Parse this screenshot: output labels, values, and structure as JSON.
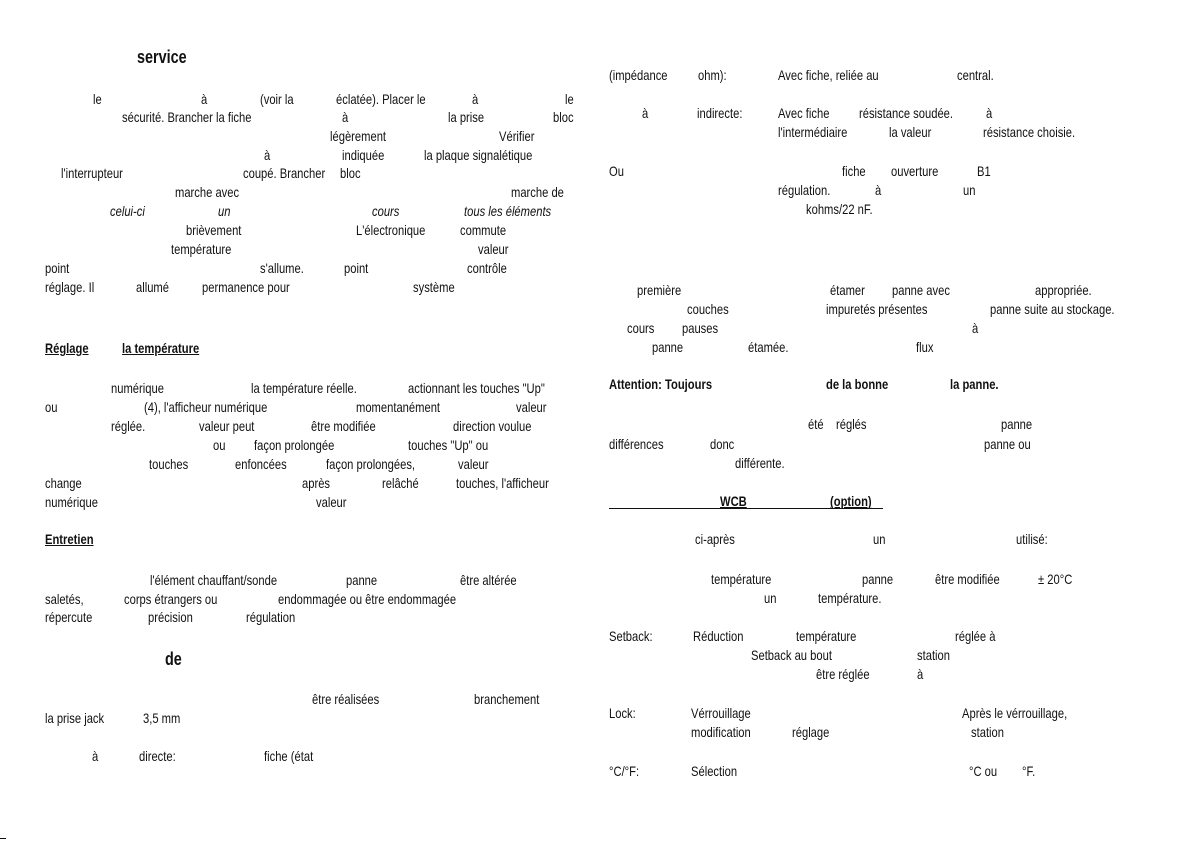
{
  "left_column": {
    "heading_service": "service",
    "l1": [
      "le",
      "à",
      "(voir la",
      "éclatée). Placer le",
      "à",
      "le"
    ],
    "l2": [
      "sécurité. Brancher la fiche",
      "à",
      "la prise",
      "bloc"
    ],
    "l3": [
      "légèrement",
      "Vérifier"
    ],
    "l4": [
      "à",
      "indiquée",
      "la plaque signalétique"
    ],
    "l5": [
      "l'interrupteur",
      "coupé. Brancher",
      "bloc"
    ],
    "l6": [
      "marche avec",
      "marche de"
    ],
    "l7": [
      "celui-ci",
      "un",
      "cours",
      "tous les éléments"
    ],
    "l8": [
      "brièvement",
      "L'électronique",
      "commute"
    ],
    "l9": [
      "température",
      "valeur"
    ],
    "l10": [
      "point",
      "s'allume.",
      "point",
      "contrôle"
    ],
    "l11": [
      "réglage. Il",
      "allumé",
      "permanence pour",
      "système"
    ],
    "heading_reglage": [
      "Réglage",
      "la température"
    ],
    "r1": [
      "numérique",
      "la température réelle.",
      "actionnant les touches \"Up\""
    ],
    "r2": [
      "ou",
      "(4), l'afficheur numérique",
      "momentanément",
      "valeur"
    ],
    "r3": [
      "réglée.",
      "valeur peut",
      "être modifiée",
      "direction voulue"
    ],
    "r4": [
      "ou",
      "façon prolongée",
      "touches \"Up\" ou"
    ],
    "r5": [
      "touches",
      "enfoncées",
      "façon prolongées,",
      "valeur"
    ],
    "r6": [
      "change",
      "après",
      "relâché",
      "touches, l'afficheur"
    ],
    "r7": [
      "numérique",
      "valeur"
    ],
    "heading_entretien": "Entretien",
    "e1": [
      "l'élément chauffant/sonde",
      "panne",
      "être altérée"
    ],
    "e2": [
      "saletés,",
      "corps étrangers ou",
      "endommagée ou être endommagée"
    ],
    "e3": [
      "répercute",
      "précision",
      "régulation"
    ],
    "heading_de": "de",
    "m1": [
      "être réalisées",
      "branchement"
    ],
    "m2": [
      "la prise jack",
      "3,5 mm"
    ],
    "m3": [
      "à",
      "directe:",
      "fiche (état"
    ]
  },
  "right_column": {
    "p1": [
      "(impédance",
      "ohm):",
      "Avec fiche, reliée au",
      "central."
    ],
    "p2": [
      "à",
      "indirecte:",
      "Avec fiche",
      "résistance soudée.",
      "à"
    ],
    "p3": [
      "l'intermédiaire",
      "la valeur",
      "résistance choisie."
    ],
    "p4": [
      "Ou",
      "fiche",
      "ouverture",
      "B1"
    ],
    "p5": [
      "régulation.",
      "à",
      "un"
    ],
    "p6": [
      "kohms/22 nF."
    ],
    "q1": [
      "première",
      "étamer",
      "panne avec",
      "appropriée."
    ],
    "q2": [
      "couches",
      "impuretés présentes",
      "panne suite au stockage."
    ],
    "q3": [
      "cours",
      "pauses",
      "à"
    ],
    "q4": [
      "panne",
      "étamée.",
      "flux"
    ],
    "attention": [
      "Attention: Toujours",
      "de la bonne",
      "la panne."
    ],
    "a1": [
      "été",
      "réglés",
      "panne"
    ],
    "a2": [
      "différences",
      "donc",
      "panne ou"
    ],
    "a3": [
      "différente."
    ],
    "heading_wcb": [
      "WCB",
      "(option)"
    ],
    "w1": [
      "ci-après",
      "un",
      "utilisé:"
    ],
    "w2": [
      "température",
      "panne",
      "être modifiée",
      "± 20°C"
    ],
    "w3": [
      "un",
      "température."
    ],
    "s1": [
      "Setback:",
      "Réduction",
      "température",
      "réglée à"
    ],
    "s2": [
      "Setback au bout",
      "station"
    ],
    "s3": [
      "être réglée",
      "à"
    ],
    "k1": [
      "Lock:",
      "Vérrouillage",
      "Après le vérrouillage,"
    ],
    "k2": [
      "modification",
      "réglage",
      "station"
    ],
    "c1": [
      "°C/°F:",
      "Sélection",
      "°C ou",
      "°F."
    ]
  }
}
